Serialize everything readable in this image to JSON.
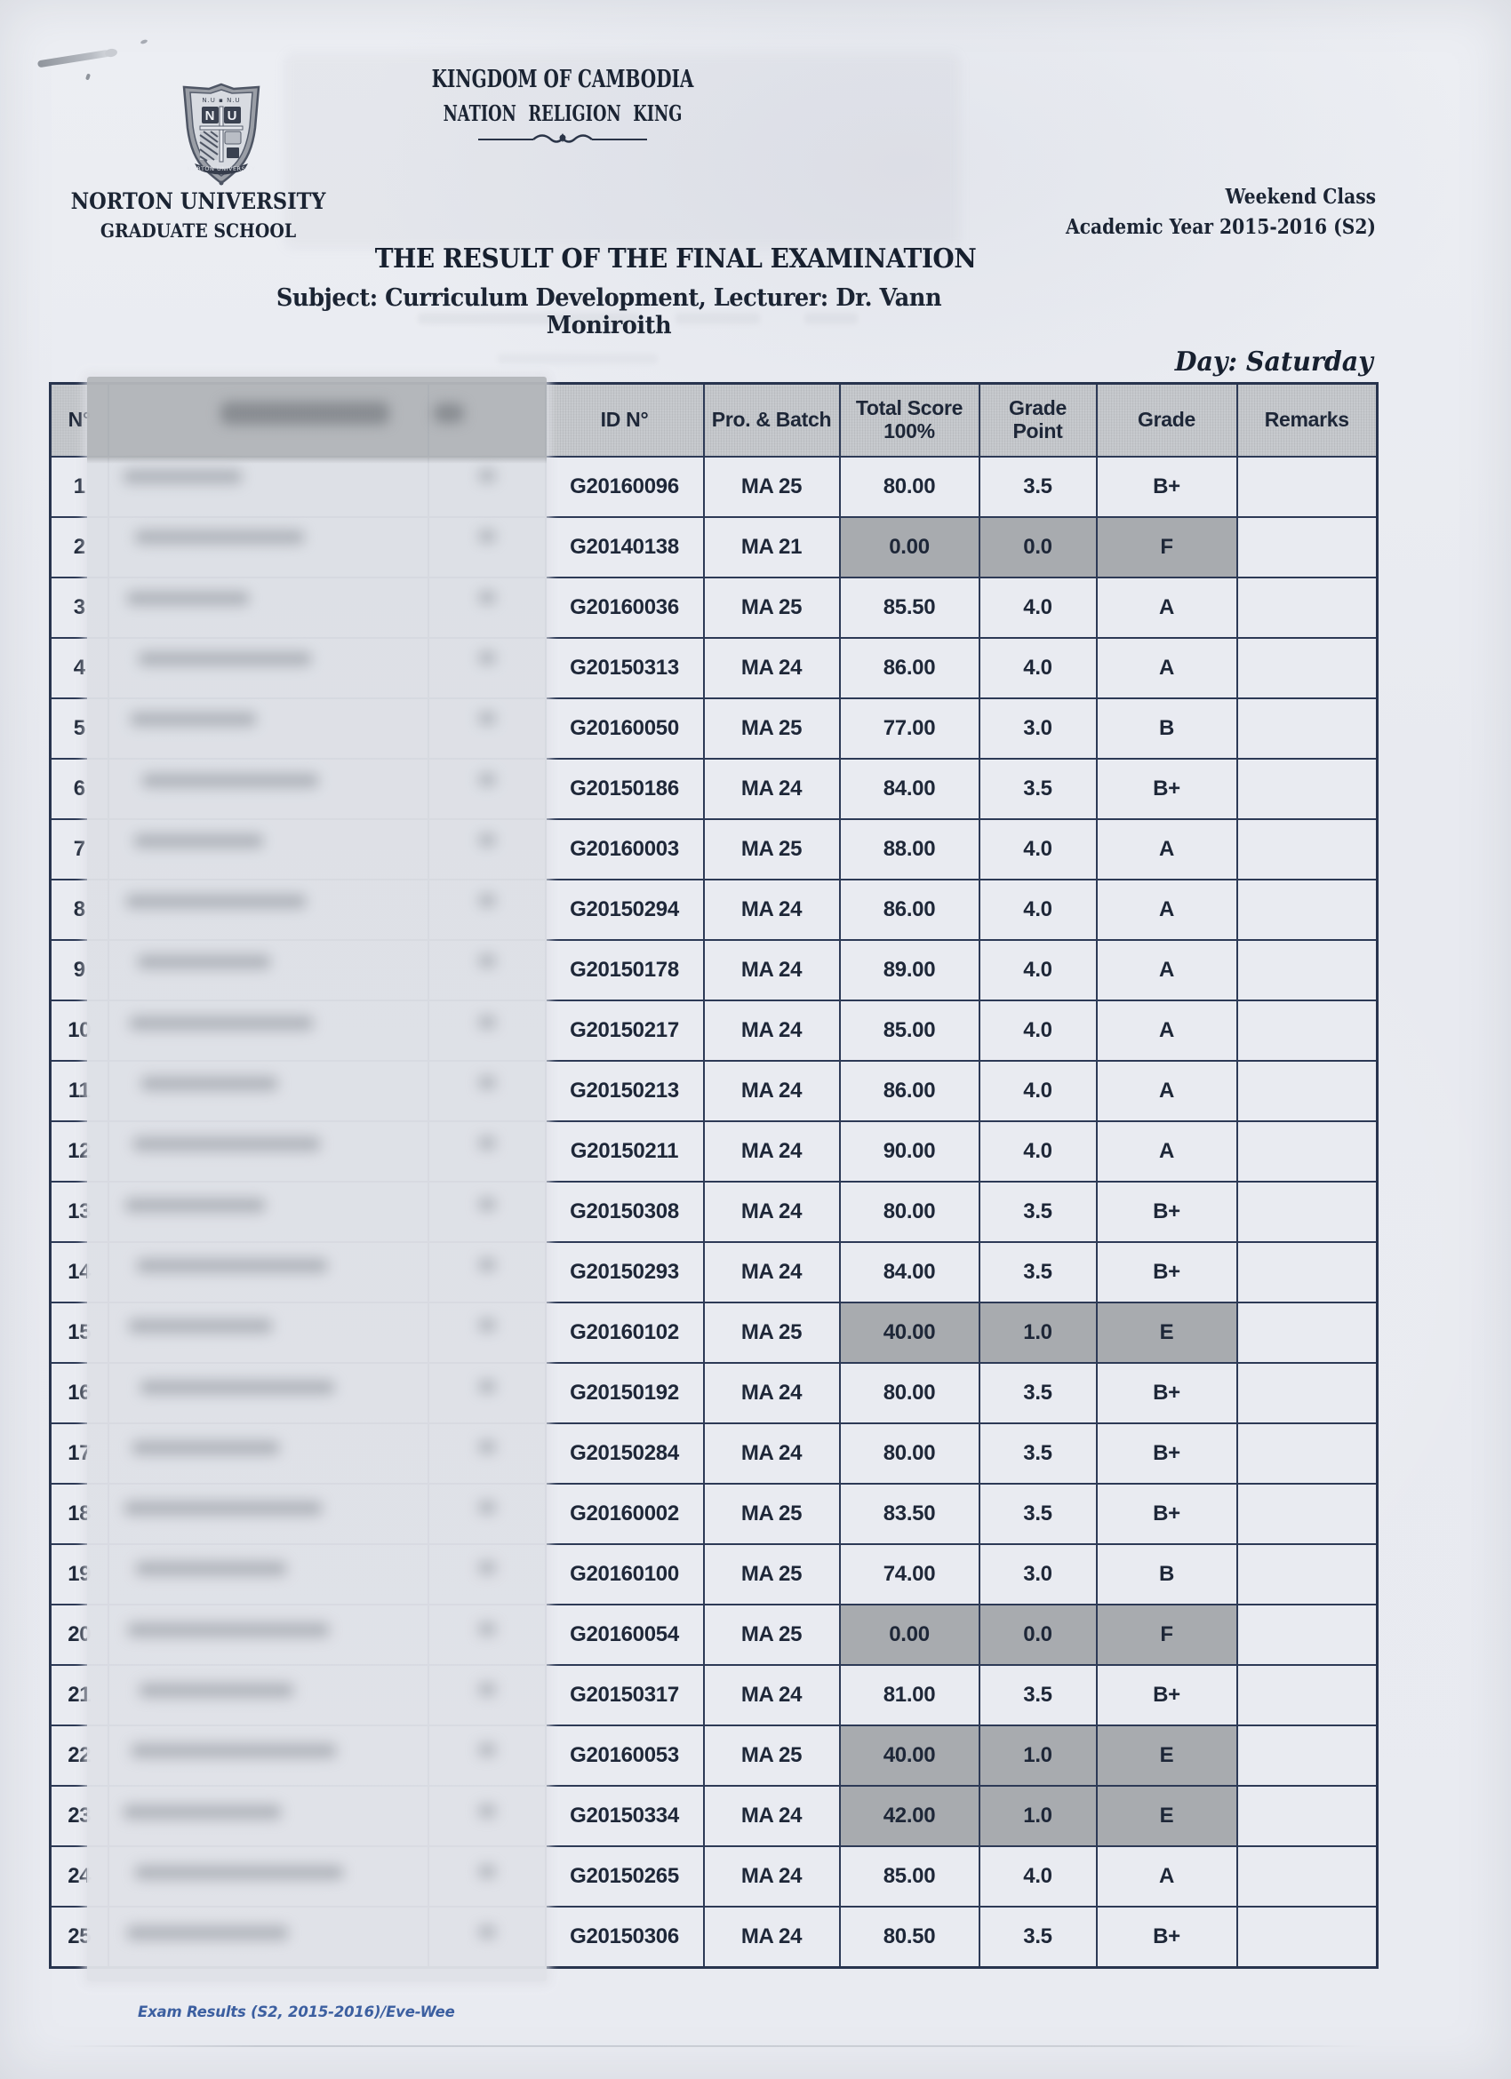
{
  "page": {
    "kingdom_line1": "KINGDOM OF CAMBODIA",
    "kingdom_line2": "NATION RELIGION KING",
    "university_name": "NORTON UNIVERSITY",
    "university_sub": "GRADUATE SCHOOL",
    "class_type": "Weekend Class",
    "academic_year": "Academic Year 2015-2016 (S2)",
    "title": "THE RESULT OF THE FINAL EXAMINATION",
    "subject_line": "Subject: Curriculum Development, Lecturer: Dr. Vann Moniroith",
    "day": "Day: Saturday",
    "footer": "Exam Results (S2, 2015-2016)/Eve-Wee",
    "logo_letters": "NU",
    "logo_banner": "NORTON UNIVERSITY"
  },
  "table": {
    "headers": {
      "no": "N°",
      "id": "ID N°",
      "pro_batch": "Pro. & Batch",
      "total_score_1": "Total Score",
      "total_score_2": "100%",
      "grade_point_1": "Grade",
      "grade_point_2": "Point",
      "grade": "Grade",
      "remarks": "Remarks"
    },
    "rows": [
      {
        "no": "1",
        "id": "G20160096",
        "batch": "MA 25",
        "score": "80.00",
        "gp": "3.5",
        "grade": "B+",
        "remarks": "",
        "fail": false
      },
      {
        "no": "2",
        "id": "G20140138",
        "batch": "MA 21",
        "score": "0.00",
        "gp": "0.0",
        "grade": "F",
        "remarks": "",
        "fail": true
      },
      {
        "no": "3",
        "id": "G20160036",
        "batch": "MA 25",
        "score": "85.50",
        "gp": "4.0",
        "grade": "A",
        "remarks": "",
        "fail": false
      },
      {
        "no": "4",
        "id": "G20150313",
        "batch": "MA 24",
        "score": "86.00",
        "gp": "4.0",
        "grade": "A",
        "remarks": "",
        "fail": false
      },
      {
        "no": "5",
        "id": "G20160050",
        "batch": "MA 25",
        "score": "77.00",
        "gp": "3.0",
        "grade": "B",
        "remarks": "",
        "fail": false
      },
      {
        "no": "6",
        "id": "G20150186",
        "batch": "MA 24",
        "score": "84.00",
        "gp": "3.5",
        "grade": "B+",
        "remarks": "",
        "fail": false
      },
      {
        "no": "7",
        "id": "G20160003",
        "batch": "MA 25",
        "score": "88.00",
        "gp": "4.0",
        "grade": "A",
        "remarks": "",
        "fail": false
      },
      {
        "no": "8",
        "id": "G20150294",
        "batch": "MA 24",
        "score": "86.00",
        "gp": "4.0",
        "grade": "A",
        "remarks": "",
        "fail": false
      },
      {
        "no": "9",
        "id": "G20150178",
        "batch": "MA 24",
        "score": "89.00",
        "gp": "4.0",
        "grade": "A",
        "remarks": "",
        "fail": false
      },
      {
        "no": "10",
        "id": "G20150217",
        "batch": "MA 24",
        "score": "85.00",
        "gp": "4.0",
        "grade": "A",
        "remarks": "",
        "fail": false
      },
      {
        "no": "11",
        "id": "G20150213",
        "batch": "MA 24",
        "score": "86.00",
        "gp": "4.0",
        "grade": "A",
        "remarks": "",
        "fail": false
      },
      {
        "no": "12",
        "id": "G20150211",
        "batch": "MA 24",
        "score": "90.00",
        "gp": "4.0",
        "grade": "A",
        "remarks": "",
        "fail": false
      },
      {
        "no": "13",
        "id": "G20150308",
        "batch": "MA 24",
        "score": "80.00",
        "gp": "3.5",
        "grade": "B+",
        "remarks": "",
        "fail": false
      },
      {
        "no": "14",
        "id": "G20150293",
        "batch": "MA 24",
        "score": "84.00",
        "gp": "3.5",
        "grade": "B+",
        "remarks": "",
        "fail": false
      },
      {
        "no": "15",
        "id": "G20160102",
        "batch": "MA 25",
        "score": "40.00",
        "gp": "1.0",
        "grade": "E",
        "remarks": "",
        "fail": true
      },
      {
        "no": "16",
        "id": "G20150192",
        "batch": "MA 24",
        "score": "80.00",
        "gp": "3.5",
        "grade": "B+",
        "remarks": "",
        "fail": false
      },
      {
        "no": "17",
        "id": "G20150284",
        "batch": "MA 24",
        "score": "80.00",
        "gp": "3.5",
        "grade": "B+",
        "remarks": "",
        "fail": false
      },
      {
        "no": "18",
        "id": "G20160002",
        "batch": "MA 25",
        "score": "83.50",
        "gp": "3.5",
        "grade": "B+",
        "remarks": "",
        "fail": false
      },
      {
        "no": "19",
        "id": "G20160100",
        "batch": "MA 25",
        "score": "74.00",
        "gp": "3.0",
        "grade": "B",
        "remarks": "",
        "fail": false
      },
      {
        "no": "20",
        "id": "G20160054",
        "batch": "MA 25",
        "score": "0.00",
        "gp": "0.0",
        "grade": "F",
        "remarks": "",
        "fail": true
      },
      {
        "no": "21",
        "id": "G20150317",
        "batch": "MA 24",
        "score": "81.00",
        "gp": "3.5",
        "grade": "B+",
        "remarks": "",
        "fail": false
      },
      {
        "no": "22",
        "id": "G20160053",
        "batch": "MA 25",
        "score": "40.00",
        "gp": "1.0",
        "grade": "E",
        "remarks": "",
        "fail": true
      },
      {
        "no": "23",
        "id": "G20150334",
        "batch": "MA 24",
        "score": "42.00",
        "gp": "1.0",
        "grade": "E",
        "remarks": "",
        "fail": true
      },
      {
        "no": "24",
        "id": "G20150265",
        "batch": "MA 24",
        "score": "85.00",
        "gp": "4.0",
        "grade": "A",
        "remarks": "",
        "fail": false
      },
      {
        "no": "25",
        "id": "G20150306",
        "batch": "MA 24",
        "score": "80.50",
        "gp": "3.5",
        "grade": "B+",
        "remarks": "",
        "fail": false
      }
    ]
  }
}
